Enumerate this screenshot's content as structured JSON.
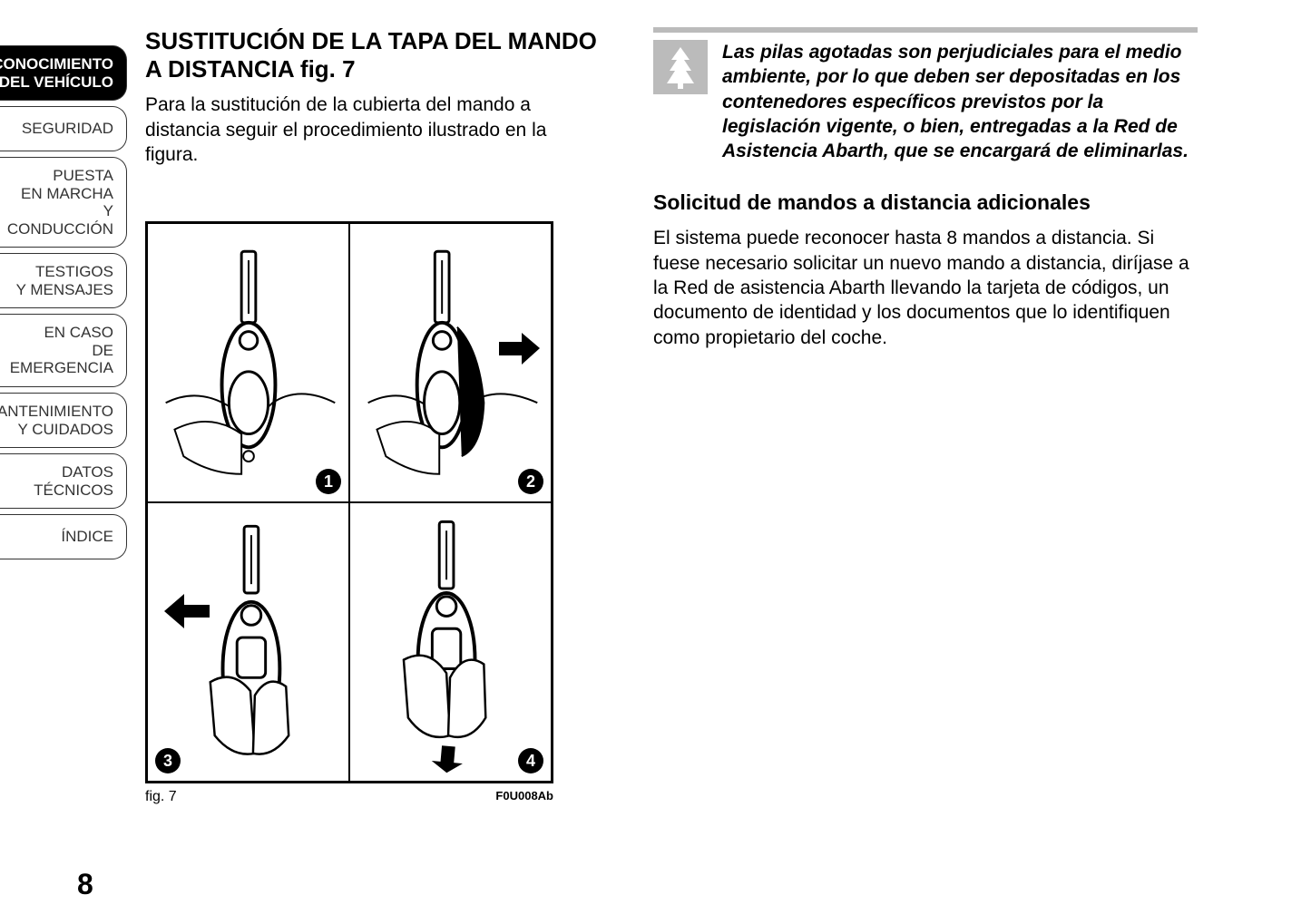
{
  "sidebar": {
    "tabs": [
      {
        "label": "CONOCIMIENTO\nDEL VEHÍCULO",
        "active": true
      },
      {
        "label": "SEGURIDAD",
        "active": false
      },
      {
        "label": "PUESTA\nEN MARCHA\nY CONDUCCIÓN",
        "active": false
      },
      {
        "label": "TESTIGOS\nY MENSAJES",
        "active": false
      },
      {
        "label": "EN CASO\nDE EMERGENCIA",
        "active": false
      },
      {
        "label": "MANTENIMIENTO\nY CUIDADOS",
        "active": false
      },
      {
        "label": "DATOS TÉCNICOS",
        "active": false
      },
      {
        "label": "ÍNDICE",
        "active": false
      }
    ]
  },
  "left": {
    "heading": "SUSTITUCIÓN DE LA TAPA DEL MANDO A DISTANCIA fig. 7",
    "paragraph": "Para la sustitución de la cubierta del mando a distancia seguir el procedimiento ilustrado en la figura.",
    "figure": {
      "panels": [
        "1",
        "2",
        "3",
        "4"
      ],
      "caption": "fig. 7",
      "code": "F0U008Ab"
    }
  },
  "right": {
    "note": "Las pilas agotadas son perjudiciales para el medio ambiente, por lo que deben ser depositadas en los contenedores específicos previstos por la legislación vigente, o bien, entregadas a la Red de Asistencia Abarth, que se encargará de eliminarlas.",
    "subheading": "Solicitud de mandos a distancia adicionales",
    "paragraph": "El sistema puede reconocer hasta 8 mandos a distancia. Si fuese necesario solicitar un nuevo mando a distancia, diríjase a la Red de asistencia Abarth llevando la tarjeta de códigos, un documento de identidad y los documentos que lo identifiquen como propietario del coche."
  },
  "page_number": "8",
  "colors": {
    "black": "#000000",
    "grey": "#bbbbbb",
    "white": "#ffffff"
  }
}
